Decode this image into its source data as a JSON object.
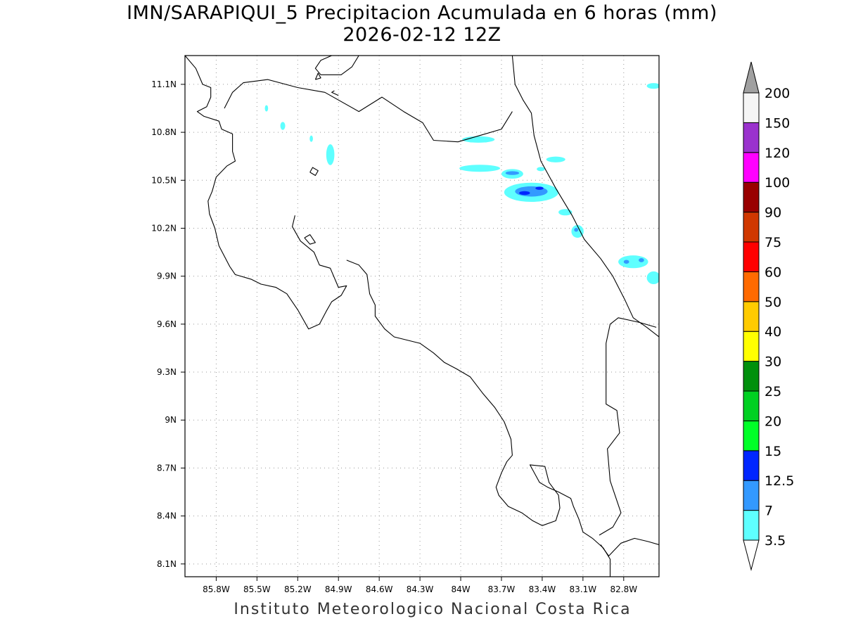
{
  "title": "IMN/SARAPIQUI_5 Precipitacion Acumulada en 6 horas (mm)",
  "subtitle": "2026-02-12 12Z",
  "footer": "Instituto Meteorologico Nacional Costa Rica",
  "map": {
    "lon_range": [
      -86.03,
      -82.54
    ],
    "lat_range": [
      8.02,
      11.28
    ],
    "x_ticks": [
      {
        "value": -85.8,
        "label": "85.8W"
      },
      {
        "value": -85.5,
        "label": "85.5W"
      },
      {
        "value": -85.2,
        "label": "85.2W"
      },
      {
        "value": -84.9,
        "label": "84.9W"
      },
      {
        "value": -84.6,
        "label": "84.6W"
      },
      {
        "value": -84.3,
        "label": "84.3W"
      },
      {
        "value": -84.0,
        "label": "84W"
      },
      {
        "value": -83.7,
        "label": "83.7W"
      },
      {
        "value": -83.4,
        "label": "83.4W"
      },
      {
        "value": -83.1,
        "label": "83.1W"
      },
      {
        "value": -82.8,
        "label": "82.8W"
      }
    ],
    "y_ticks": [
      {
        "value": 11.1,
        "label": "11.1N"
      },
      {
        "value": 10.8,
        "label": "10.8N"
      },
      {
        "value": 10.5,
        "label": "10.5N"
      },
      {
        "value": 10.2,
        "label": "10.2N"
      },
      {
        "value": 9.9,
        "label": "9.9N"
      },
      {
        "value": 9.6,
        "label": "9.6N"
      },
      {
        "value": 9.3,
        "label": "9.3N"
      },
      {
        "value": 9.0,
        "label": "9N"
      },
      {
        "value": 8.7,
        "label": "8.7N"
      },
      {
        "value": 8.4,
        "label": "8.4N"
      },
      {
        "value": 8.1,
        "label": "8.1N"
      }
    ],
    "grid": "dotted",
    "precip_areas": [
      {
        "lon": -85.43,
        "lat": 10.95,
        "rlon": 0.012,
        "rlat": 0.02,
        "class": "3.5"
      },
      {
        "lon": -85.31,
        "lat": 10.84,
        "rlon": 0.018,
        "rlat": 0.025,
        "class": "3.5"
      },
      {
        "lon": -85.1,
        "lat": 10.76,
        "rlon": 0.012,
        "rlat": 0.02,
        "class": "3.5"
      },
      {
        "lon": -84.96,
        "lat": 10.66,
        "rlon": 0.03,
        "rlat": 0.065,
        "class": "3.5"
      },
      {
        "lon": -83.87,
        "lat": 10.755,
        "rlon": 0.12,
        "rlat": 0.02,
        "class": "3.5"
      },
      {
        "lon": -83.86,
        "lat": 10.575,
        "rlon": 0.15,
        "rlat": 0.022,
        "class": "3.5"
      },
      {
        "lon": -83.62,
        "lat": 10.54,
        "rlon": 0.08,
        "rlat": 0.03,
        "class": "3.5"
      },
      {
        "lon": -83.62,
        "lat": 10.545,
        "rlon": 0.05,
        "rlat": 0.012,
        "class": "7"
      },
      {
        "lon": -83.48,
        "lat": 10.425,
        "rlon": 0.2,
        "rlat": 0.06,
        "class": "3.5"
      },
      {
        "lon": -83.48,
        "lat": 10.43,
        "rlon": 0.12,
        "rlat": 0.032,
        "class": "7"
      },
      {
        "lon": -83.53,
        "lat": 10.42,
        "rlon": 0.04,
        "rlat": 0.012,
        "class": "12.5"
      },
      {
        "lon": -83.42,
        "lat": 10.45,
        "rlon": 0.03,
        "rlat": 0.01,
        "class": "12.5"
      },
      {
        "lon": -83.41,
        "lat": 10.57,
        "rlon": 0.03,
        "rlat": 0.013,
        "class": "3.5"
      },
      {
        "lon": -83.3,
        "lat": 10.63,
        "rlon": 0.07,
        "rlat": 0.018,
        "class": "3.5"
      },
      {
        "lon": -83.23,
        "lat": 10.3,
        "rlon": 0.05,
        "rlat": 0.02,
        "class": "3.5"
      },
      {
        "lon": -83.14,
        "lat": 10.18,
        "rlon": 0.045,
        "rlat": 0.04,
        "class": "3.5"
      },
      {
        "lon": -83.15,
        "lat": 10.19,
        "rlon": 0.015,
        "rlat": 0.012,
        "class": "7"
      },
      {
        "lon": -82.73,
        "lat": 9.99,
        "rlon": 0.11,
        "rlat": 0.04,
        "class": "3.5"
      },
      {
        "lon": -82.78,
        "lat": 9.99,
        "rlon": 0.02,
        "rlat": 0.012,
        "class": "7"
      },
      {
        "lon": -82.67,
        "lat": 10.0,
        "rlon": 0.02,
        "rlat": 0.013,
        "class": "7"
      },
      {
        "lon": -82.58,
        "lat": 9.89,
        "rlon": 0.05,
        "rlat": 0.04,
        "class": "3.5"
      },
      {
        "lon": -82.58,
        "lat": 11.09,
        "rlon": 0.05,
        "rlat": 0.018,
        "class": "3.5"
      }
    ],
    "coastline": [
      [
        [
          -86.03,
          11.28
        ],
        [
          -85.95,
          11.2
        ],
        [
          -85.9,
          11.1
        ],
        [
          -85.84,
          11.08
        ],
        [
          -85.84,
          11.02
        ],
        [
          -85.87,
          10.96
        ],
        [
          -85.94,
          10.93
        ],
        [
          -85.89,
          10.9
        ],
        [
          -85.78,
          10.87
        ],
        [
          -85.76,
          10.82
        ],
        [
          -85.68,
          10.79
        ],
        [
          -85.68,
          10.68
        ],
        [
          -85.66,
          10.62
        ],
        [
          -85.72,
          10.59
        ],
        [
          -85.8,
          10.52
        ],
        [
          -85.83,
          10.43
        ],
        [
          -85.86,
          10.37
        ],
        [
          -85.85,
          10.29
        ],
        [
          -85.81,
          10.2
        ],
        [
          -85.78,
          10.09
        ],
        [
          -85.7,
          9.96
        ],
        [
          -85.66,
          9.91
        ],
        [
          -85.54,
          9.88
        ],
        [
          -85.47,
          9.85
        ],
        [
          -85.36,
          9.83
        ],
        [
          -85.28,
          9.79
        ],
        [
          -85.2,
          9.69
        ],
        [
          -85.12,
          9.57
        ],
        [
          -85.04,
          9.6
        ],
        [
          -84.99,
          9.68
        ],
        [
          -84.95,
          9.74
        ],
        [
          -84.88,
          9.78
        ],
        [
          -84.84,
          9.84
        ],
        [
          -84.9,
          9.83
        ],
        [
          -84.96,
          9.95
        ],
        [
          -85.04,
          9.97
        ],
        [
          -85.08,
          10.05
        ],
        [
          -85.18,
          10.12
        ],
        [
          -85.24,
          10.21
        ],
        [
          -85.22,
          10.28
        ]
      ],
      [
        [
          -84.84,
          10.0
        ],
        [
          -84.75,
          9.97
        ],
        [
          -84.69,
          9.91
        ],
        [
          -84.67,
          9.79
        ],
        [
          -84.63,
          9.72
        ],
        [
          -84.63,
          9.65
        ],
        [
          -84.56,
          9.57
        ],
        [
          -84.49,
          9.52
        ],
        [
          -84.3,
          9.48
        ],
        [
          -84.2,
          9.42
        ],
        [
          -84.12,
          9.36
        ],
        [
          -84.03,
          9.32
        ],
        [
          -83.93,
          9.27
        ],
        [
          -83.84,
          9.17
        ],
        [
          -83.75,
          9.08
        ],
        [
          -83.68,
          8.99
        ],
        [
          -83.63,
          8.88
        ],
        [
          -83.62,
          8.78
        ],
        [
          -83.66,
          8.74
        ],
        [
          -83.7,
          8.67
        ],
        [
          -83.74,
          8.58
        ],
        [
          -83.72,
          8.53
        ],
        [
          -83.65,
          8.46
        ],
        [
          -83.55,
          8.42
        ],
        [
          -83.47,
          8.37
        ],
        [
          -83.4,
          8.34
        ],
        [
          -83.3,
          8.37
        ],
        [
          -83.27,
          8.45
        ],
        [
          -83.28,
          8.53
        ],
        [
          -83.35,
          8.61
        ],
        [
          -83.38,
          8.71
        ],
        [
          -83.49,
          8.72
        ],
        [
          -83.42,
          8.61
        ],
        [
          -83.36,
          8.58
        ],
        [
          -83.28,
          8.55
        ],
        [
          -83.19,
          8.51
        ],
        [
          -83.17,
          8.46
        ],
        [
          -83.13,
          8.38
        ],
        [
          -83.1,
          8.3
        ],
        [
          -83.03,
          8.26
        ],
        [
          -82.95,
          8.2
        ],
        [
          -82.9,
          8.13
        ],
        [
          -82.9,
          8.02
        ]
      ],
      [
        [
          -83.62,
          11.28
        ],
        [
          -83.6,
          11.1
        ],
        [
          -83.54,
          11.0
        ],
        [
          -83.48,
          10.92
        ],
        [
          -83.46,
          10.78
        ],
        [
          -83.41,
          10.62
        ],
        [
          -83.3,
          10.45
        ],
        [
          -83.18,
          10.28
        ],
        [
          -83.09,
          10.13
        ],
        [
          -82.97,
          10.01
        ],
        [
          -82.88,
          9.9
        ],
        [
          -82.79,
          9.75
        ],
        [
          -82.73,
          9.64
        ],
        [
          -82.63,
          9.58
        ],
        [
          -82.54,
          9.52
        ]
      ],
      [
        [
          -82.54,
          8.22
        ],
        [
          -82.62,
          8.24
        ],
        [
          -82.72,
          8.26
        ],
        [
          -82.82,
          8.23
        ],
        [
          -82.91,
          8.15
        ],
        [
          -82.97,
          8.22
        ]
      ]
    ],
    "borders": [
      [
        [
          -85.74,
          10.95
        ],
        [
          -85.68,
          11.05
        ],
        [
          -85.6,
          11.11
        ],
        [
          -85.42,
          11.13
        ],
        [
          -85.2,
          11.08
        ],
        [
          -85.0,
          11.05
        ],
        [
          -84.75,
          10.93
        ],
        [
          -84.58,
          11.02
        ],
        [
          -84.42,
          10.93
        ],
        [
          -84.28,
          10.86
        ],
        [
          -84.2,
          10.75
        ],
        [
          -84.02,
          10.74
        ],
        [
          -83.86,
          10.78
        ],
        [
          -83.7,
          10.82
        ],
        [
          -83.62,
          10.93
        ]
      ],
      [
        [
          -82.56,
          9.58
        ],
        [
          -82.68,
          9.61
        ],
        [
          -82.84,
          9.64
        ],
        [
          -82.9,
          9.6
        ],
        [
          -82.93,
          9.48
        ],
        [
          -82.93,
          9.1
        ],
        [
          -82.85,
          9.06
        ],
        [
          -82.83,
          8.92
        ],
        [
          -82.92,
          8.82
        ],
        [
          -82.9,
          8.62
        ],
        [
          -82.82,
          8.42
        ],
        [
          -82.88,
          8.33
        ],
        [
          -82.98,
          8.28
        ]
      ]
    ],
    "inland_lines": [
      [
        [
          -84.95,
          11.28
        ],
        [
          -85.03,
          11.25
        ],
        [
          -85.07,
          11.2
        ],
        [
          -85.03,
          11.16
        ],
        [
          -84.88,
          11.16
        ],
        [
          -84.8,
          11.21
        ],
        [
          -84.75,
          11.28
        ]
      ],
      [
        [
          -84.9,
          11.03
        ],
        [
          -84.95,
          11.05
        ],
        [
          -84.93,
          11.06
        ]
      ]
    ],
    "lakes": [
      [
        [
          -85.11,
          10.55
        ],
        [
          -85.09,
          10.58
        ],
        [
          -85.05,
          10.56
        ],
        [
          -85.07,
          10.53
        ],
        [
          -85.11,
          10.55
        ]
      ],
      [
        [
          -85.15,
          10.14
        ],
        [
          -85.11,
          10.16
        ],
        [
          -85.07,
          10.11
        ],
        [
          -85.11,
          10.1
        ],
        [
          -85.15,
          10.14
        ]
      ],
      [
        [
          -85.07,
          11.13
        ],
        [
          -85.05,
          11.17
        ],
        [
          -85.03,
          11.14
        ],
        [
          -85.07,
          11.13
        ]
      ]
    ]
  },
  "colorbar": {
    "labels": [
      "3.5",
      "7",
      "12.5",
      "15",
      "20",
      "25",
      "30",
      "40",
      "50",
      "60",
      "75",
      "90",
      "100",
      "120",
      "150",
      "200"
    ],
    "colors": [
      "#ffffff",
      "#5effff",
      "#3399ff",
      "#0026ff",
      "#00ff28",
      "#00d022",
      "#00900c",
      "#ffff00",
      "#ffcb00",
      "#ff6a00",
      "#ff0000",
      "#d03800",
      "#990000",
      "#ff00ff",
      "#9a32cd",
      "#f5f5f5",
      "#a0a0a0"
    ]
  }
}
